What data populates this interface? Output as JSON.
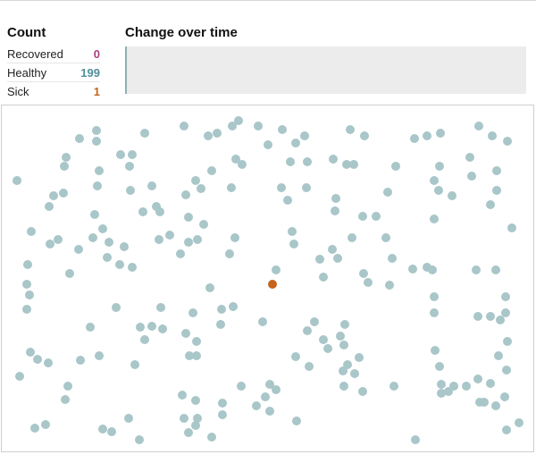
{
  "count": {
    "title": "Count",
    "items": [
      {
        "label": "Recovered",
        "value": "0",
        "color": "#a8407f"
      },
      {
        "label": "Healthy",
        "value": "199",
        "color": "#4f8f97"
      },
      {
        "label": "Sick",
        "value": "1",
        "color": "#c4651e"
      }
    ]
  },
  "change": {
    "title": "Change over time"
  },
  "simulation": {
    "healthy_color": "#a9c6c9",
    "sick_color": "#c4651e"
  }
}
